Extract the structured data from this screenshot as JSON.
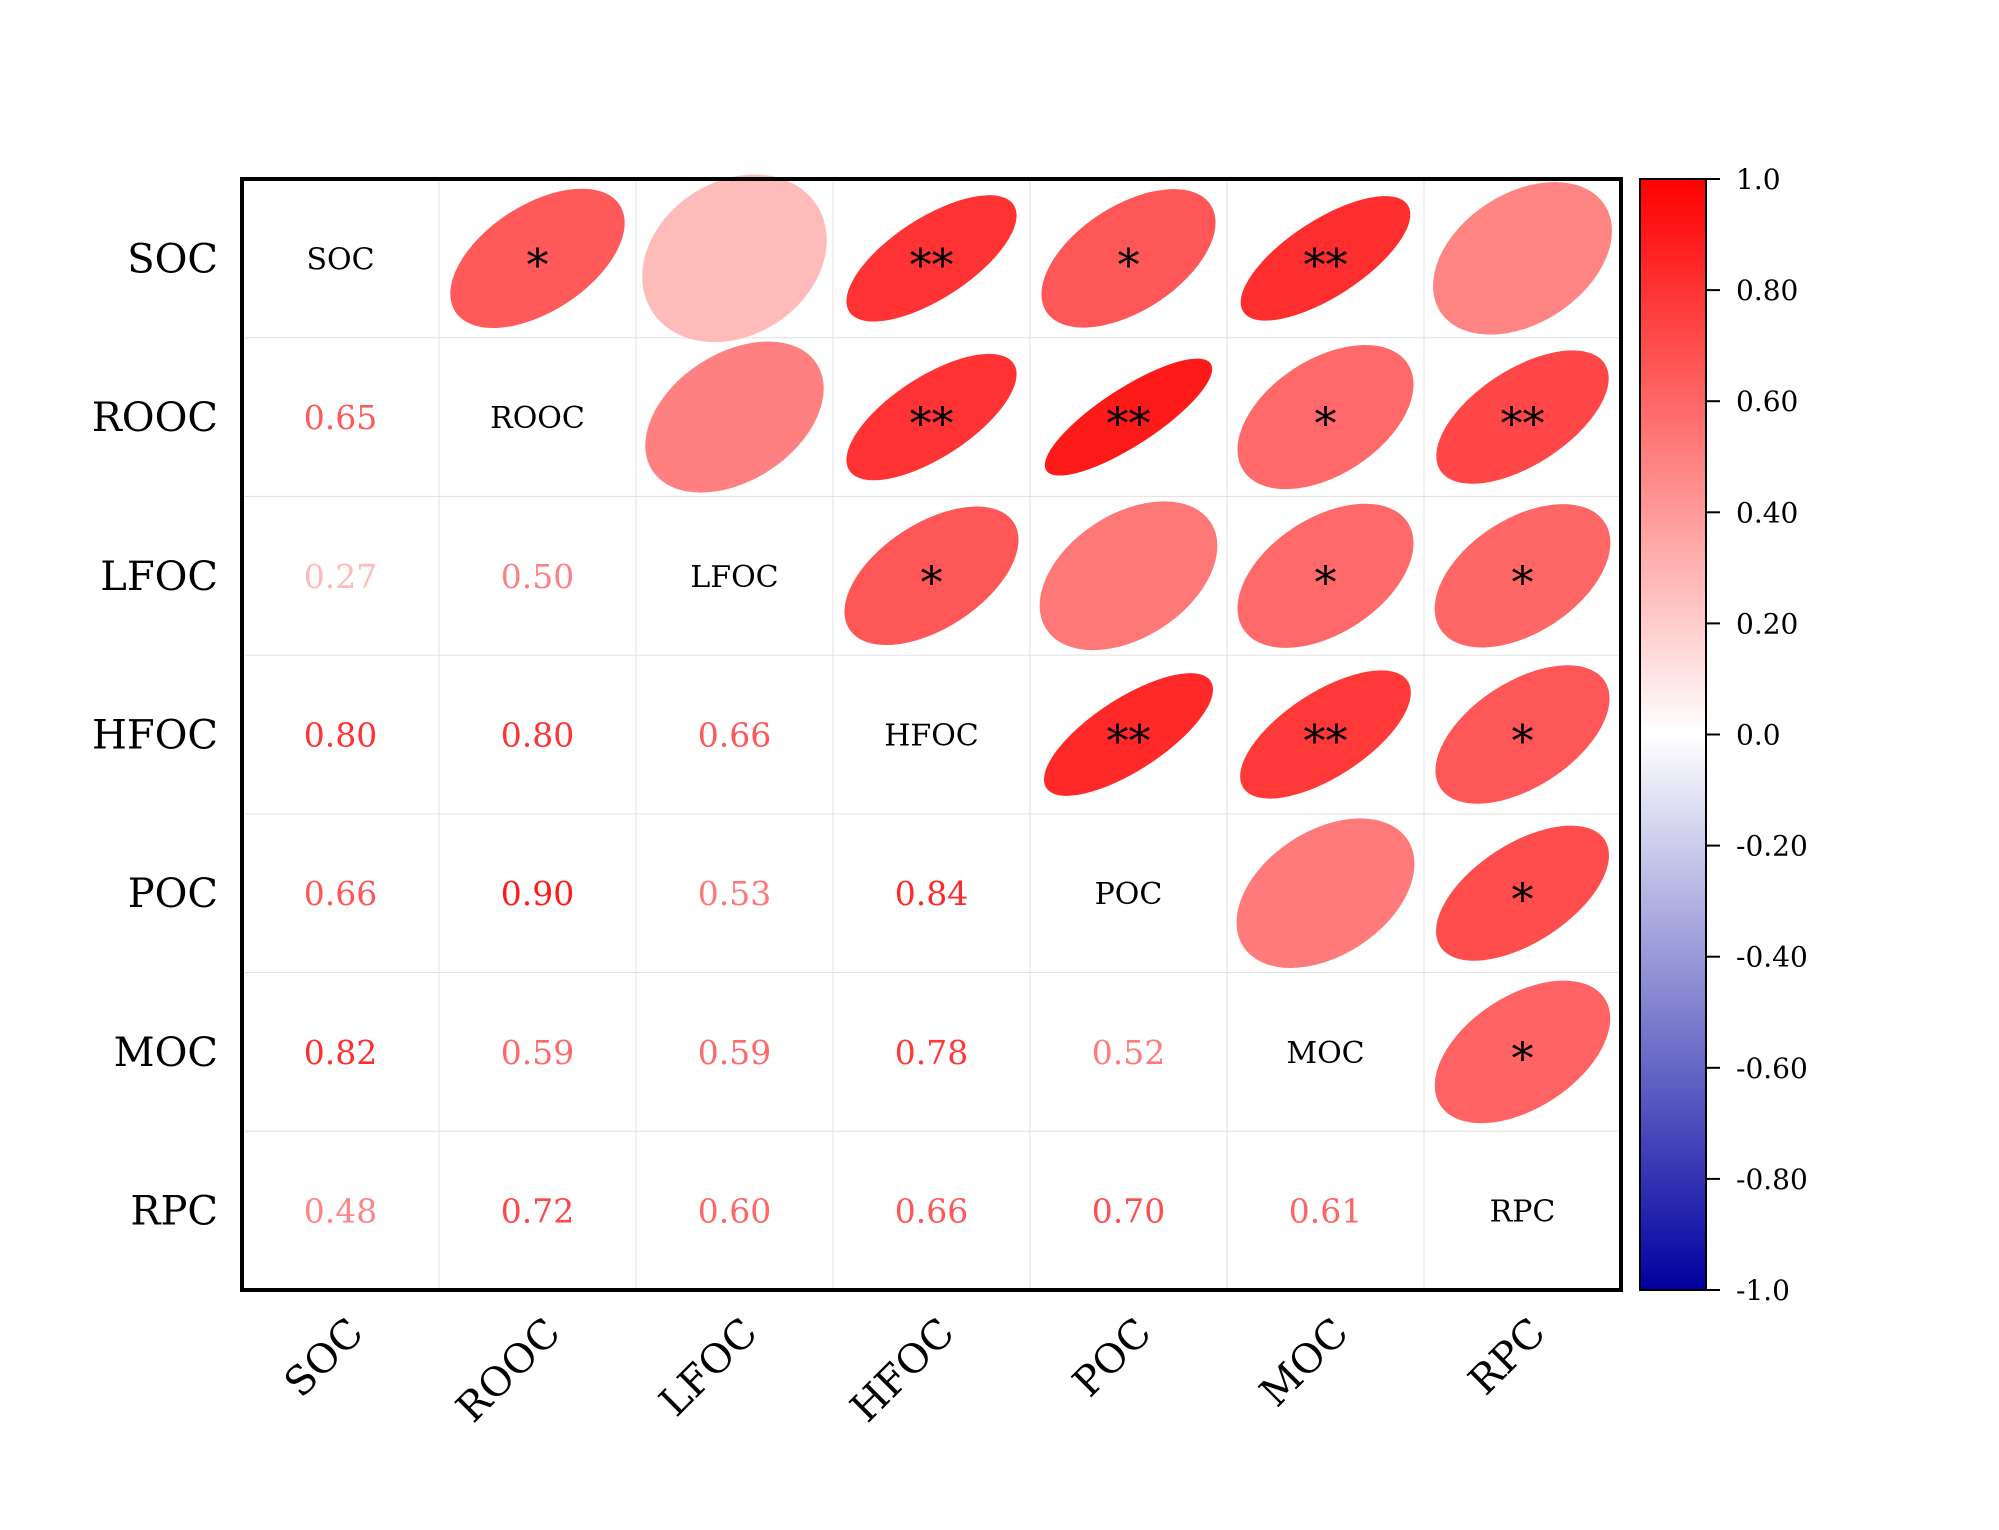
{
  "chart_data": {
    "type": "heatmap",
    "subtype": "correlation-matrix",
    "variables": [
      "SOC",
      "ROOC",
      "LFOC",
      "HFOC",
      "POC",
      "MOC",
      "RPC"
    ],
    "matrix": [
      [
        1.0,
        0.65,
        0.27,
        0.8,
        0.66,
        0.82,
        0.48
      ],
      [
        0.65,
        1.0,
        0.5,
        0.8,
        0.9,
        0.59,
        0.72
      ],
      [
        0.27,
        0.5,
        1.0,
        0.66,
        0.53,
        0.59,
        0.6
      ],
      [
        0.8,
        0.8,
        0.66,
        1.0,
        0.84,
        0.78,
        0.66
      ],
      [
        0.66,
        0.9,
        0.53,
        0.84,
        1.0,
        0.52,
        0.7
      ],
      [
        0.82,
        0.59,
        0.59,
        0.78,
        0.52,
        1.0,
        0.61
      ],
      [
        0.48,
        0.72,
        0.6,
        0.66,
        0.7,
        0.61,
        1.0
      ]
    ],
    "value_labels": [
      [
        "",
        "",
        "",
        "",
        "",
        "",
        ""
      ],
      [
        "0.65",
        "",
        "",
        "",
        "",
        "",
        ""
      ],
      [
        "0.27",
        "0.50",
        "",
        "",
        "",
        "",
        ""
      ],
      [
        "0.80",
        "0.80",
        "0.66",
        "",
        "",
        "",
        ""
      ],
      [
        "0.66",
        "0.90",
        "0.53",
        "0.84",
        "",
        "",
        ""
      ],
      [
        "0.82",
        "0.59",
        "0.59",
        "0.78",
        "0.52",
        "",
        ""
      ],
      [
        "0.48",
        "0.72",
        "0.60",
        "0.66",
        "0.70",
        "0.61",
        ""
      ]
    ],
    "significance": [
      [
        "",
        "*",
        "",
        "**",
        "*",
        "**",
        ""
      ],
      [
        "",
        "",
        "",
        "**",
        "**",
        "*",
        "**"
      ],
      [
        "",
        "",
        "",
        "*",
        "",
        "*",
        "*"
      ],
      [
        "",
        "",
        "",
        "",
        "**",
        "**",
        "*"
      ],
      [
        "",
        "",
        "",
        "",
        "",
        "",
        "*"
      ],
      [
        "",
        "",
        "",
        "",
        "",
        "",
        "*"
      ],
      [
        "",
        "",
        "",
        "",
        "",
        "",
        ""
      ]
    ],
    "lower_triangle": "numbers",
    "upper_triangle": "ellipses",
    "diagonal": "variable names",
    "colorbar": {
      "range": [
        -1.0,
        1.0
      ],
      "ticks": [
        1.0,
        0.8,
        0.6,
        0.4,
        0.2,
        0.0,
        -0.2,
        -0.4,
        -0.6,
        -0.8,
        -1.0
      ],
      "tick_labels": [
        "1.0",
        "0.80",
        "0.60",
        "0.40",
        "0.20",
        "0.0",
        "-0.20",
        "-0.40",
        "-0.60",
        "-0.80",
        "-1.0"
      ],
      "colors": {
        "negative": "#0000a0",
        "zero": "#ffffff",
        "positive": "#ff0000"
      }
    },
    "colors": {
      "frame": "#000000",
      "grid": "#e0e0e0",
      "text": "#000000",
      "background": "#ffffff"
    }
  }
}
